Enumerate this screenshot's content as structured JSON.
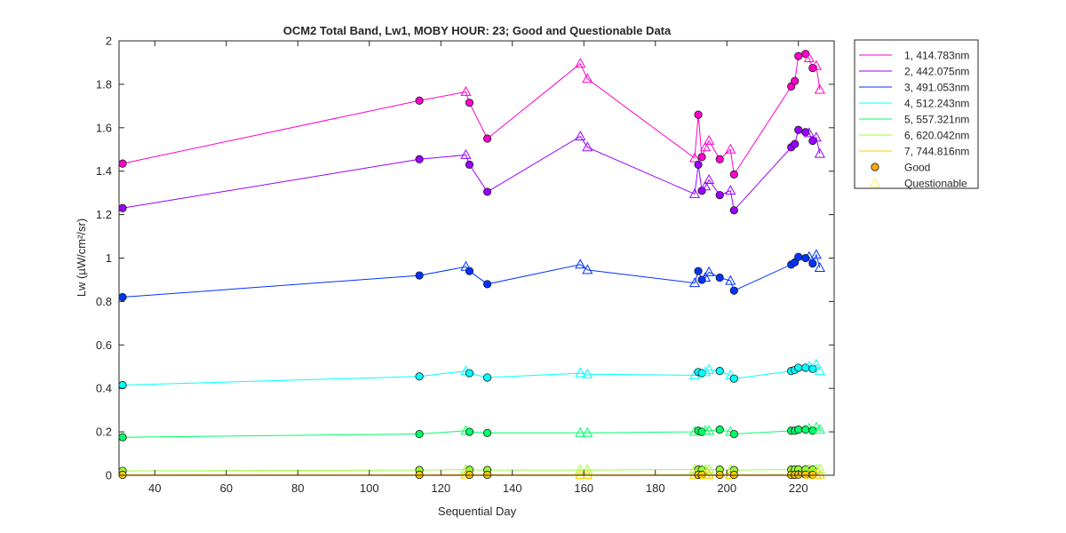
{
  "chart_data": {
    "type": "line",
    "title": "OCM2 Total Band,  Lw1, MOBY HOUR: 23;  Good and Questionable Data",
    "xlabel": "Sequential Day",
    "ylabel": "Lw (µW/cm²/sr)",
    "xlim": [
      30,
      230
    ],
    "ylim": [
      0,
      2
    ],
    "x_ticks": [
      "40",
      "60",
      "80",
      "100",
      "120",
      "140",
      "160",
      "180",
      "200",
      "220"
    ],
    "y_ticks": [
      "0",
      "0.2",
      "0.4",
      "0.6",
      "0.8",
      "1",
      "1.2",
      "1.4",
      "1.6",
      "1.8",
      "2"
    ],
    "legend_position": "outside-top-right",
    "x": [
      31,
      114,
      127,
      128,
      133,
      159,
      161,
      191,
      192,
      193,
      194,
      195,
      198,
      201,
      202,
      218,
      219,
      220,
      222,
      223,
      224,
      225,
      226
    ],
    "quality": [
      "G",
      "G",
      "Q",
      "G",
      "G",
      "Q",
      "Q",
      "Q",
      "G",
      "G",
      "Q",
      "Q",
      "G",
      "Q",
      "G",
      "G",
      "G",
      "G",
      "G",
      "Q",
      "G",
      "Q",
      "Q"
    ],
    "series": [
      {
        "name": "1, 414.783nm",
        "color": "#ff00cc",
        "values": [
          1.435,
          1.725,
          1.765,
          1.715,
          1.55,
          1.895,
          1.825,
          1.46,
          1.66,
          1.465,
          1.51,
          1.54,
          1.455,
          1.5,
          1.385,
          1.79,
          1.815,
          1.93,
          1.94,
          1.92,
          1.875,
          1.885,
          1.775
        ]
      },
      {
        "name": "2, 442.075nm",
        "color": "#9900ff",
        "values": [
          1.23,
          1.455,
          1.475,
          1.43,
          1.305,
          1.56,
          1.51,
          1.295,
          1.43,
          1.31,
          1.33,
          1.36,
          1.29,
          1.31,
          1.22,
          1.51,
          1.525,
          1.59,
          1.58,
          1.575,
          1.54,
          1.555,
          1.48
        ]
      },
      {
        "name": "3, 491.053nm",
        "color": "#0033ff",
        "values": [
          0.82,
          0.92,
          0.96,
          0.94,
          0.88,
          0.97,
          0.945,
          0.885,
          0.94,
          0.9,
          0.91,
          0.935,
          0.91,
          0.895,
          0.85,
          0.97,
          0.98,
          1.005,
          1.0,
          1.005,
          0.975,
          1.015,
          0.955
        ]
      },
      {
        "name": "4, 512.243nm",
        "color": "#00ffff",
        "values": [
          0.415,
          0.455,
          0.48,
          0.47,
          0.45,
          0.47,
          0.465,
          0.46,
          0.475,
          0.47,
          0.475,
          0.485,
          0.48,
          0.46,
          0.445,
          0.48,
          0.485,
          0.495,
          0.495,
          0.5,
          0.49,
          0.51,
          0.48
        ]
      },
      {
        "name": "5, 557.321nm",
        "color": "#00ff66",
        "values": [
          0.175,
          0.19,
          0.205,
          0.2,
          0.195,
          0.195,
          0.195,
          0.2,
          0.205,
          0.2,
          0.205,
          0.205,
          0.21,
          0.2,
          0.19,
          0.205,
          0.205,
          0.21,
          0.21,
          0.215,
          0.205,
          0.22,
          0.21
        ]
      },
      {
        "name": "6, 620.042nm",
        "color": "#99ff33",
        "values": [
          0.02,
          0.024,
          0.026,
          0.025,
          0.024,
          0.024,
          0.024,
          0.026,
          0.026,
          0.025,
          0.026,
          0.026,
          0.026,
          0.025,
          0.024,
          0.026,
          0.026,
          0.027,
          0.027,
          0.027,
          0.026,
          0.028,
          0.027
        ]
      },
      {
        "name": "7, 744.816nm",
        "color": "#ffcc00",
        "values": [
          0.002,
          0.002,
          0.003,
          0.002,
          0.002,
          0.002,
          0.002,
          0.002,
          0.002,
          0.002,
          0.002,
          0.002,
          0.002,
          0.002,
          0.002,
          0.002,
          0.002,
          0.003,
          0.003,
          0.003,
          0.002,
          0.003,
          0.003
        ]
      }
    ],
    "markers": [
      {
        "name": "Good",
        "symbol": "circle",
        "color": "#ffaa00"
      },
      {
        "name": "Questionable",
        "symbol": "triangle",
        "color": "#ffee66"
      }
    ]
  }
}
